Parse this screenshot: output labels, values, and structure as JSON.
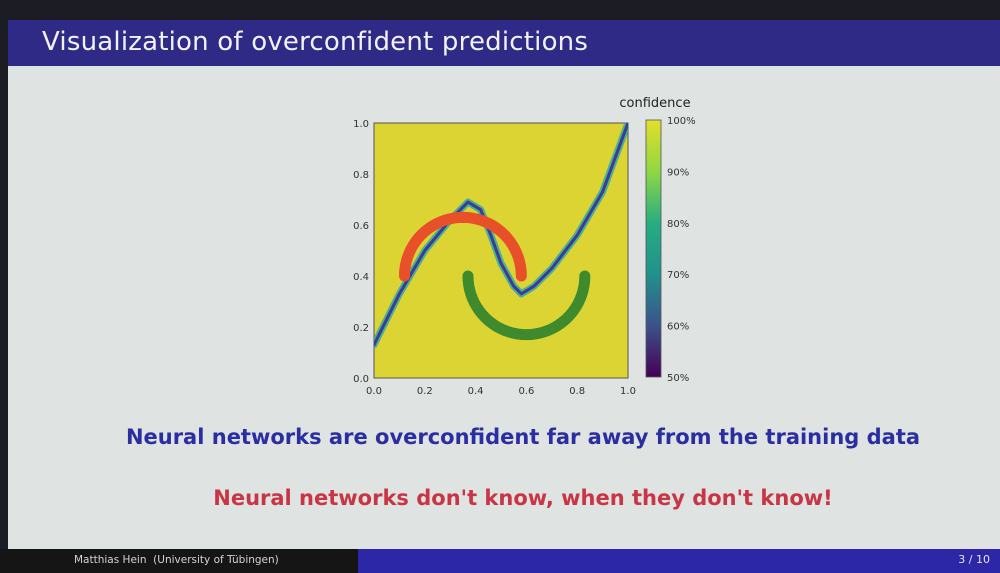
{
  "slide": {
    "title": "Visualization of overconfident predictions",
    "message_blue": "Neural networks are overconfident far away from the training data",
    "message_red": "Neural networks don't know, when they don't know!"
  },
  "footer": {
    "author": "Matthias Hein",
    "affiliation": "(University of Tübingen)",
    "page": "3 / 10"
  },
  "chart_data": {
    "type": "heatmap",
    "xlim": [
      0.0,
      1.0
    ],
    "ylim": [
      0.0,
      1.0
    ],
    "x_ticks": [
      "0.0",
      "0.2",
      "0.4",
      "0.6",
      "0.8",
      "1.0"
    ],
    "y_ticks": [
      "0.0",
      "0.2",
      "0.4",
      "0.6",
      "0.8",
      "1.0"
    ],
    "colorbar": {
      "label": "confidence",
      "ticks": [
        "50%",
        "60%",
        "70%",
        "80%",
        "90%",
        "100%"
      ],
      "range": [
        50,
        100
      ]
    },
    "colors": {
      "background": "#dbd433",
      "class_red": "#e8502a",
      "class_green": "#3f8a2c",
      "boundary_dark": "#3a3c96",
      "boundary_mid": "#2ba4a8"
    },
    "red_moon": {
      "center": [
        0.35,
        0.4
      ],
      "radius": 0.23,
      "theta_start_deg": 0,
      "theta_end_deg": 180
    },
    "green_moon": {
      "center": [
        0.6,
        0.4
      ],
      "radius": 0.23,
      "theta_start_deg": 180,
      "theta_end_deg": 360
    },
    "decision_boundary": [
      [
        0.0,
        0.13
      ],
      [
        0.1,
        0.33
      ],
      [
        0.2,
        0.5
      ],
      [
        0.3,
        0.62
      ],
      [
        0.37,
        0.69
      ],
      [
        0.42,
        0.66
      ],
      [
        0.46,
        0.56
      ],
      [
        0.5,
        0.45
      ],
      [
        0.55,
        0.36
      ],
      [
        0.58,
        0.33
      ],
      [
        0.63,
        0.36
      ],
      [
        0.7,
        0.43
      ],
      [
        0.8,
        0.56
      ],
      [
        0.9,
        0.73
      ],
      [
        1.0,
        1.0
      ]
    ]
  }
}
